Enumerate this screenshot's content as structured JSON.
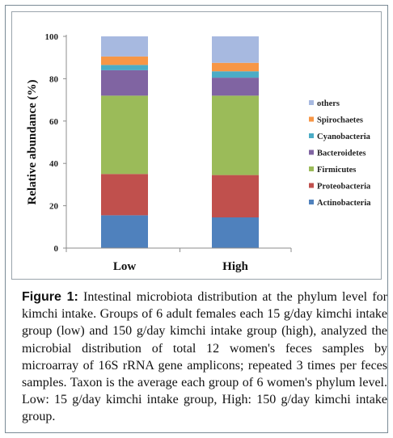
{
  "chart_data": {
    "type": "bar",
    "stacked": true,
    "categories": [
      "Low",
      "High"
    ],
    "ylabel": "Relative abundance (%)",
    "xlabel": "",
    "ylim": [
      0,
      100
    ],
    "yticks": [
      0,
      20,
      40,
      60,
      80,
      100
    ],
    "grid": false,
    "legend_position": "right",
    "series": [
      {
        "name": "Actinobacteria",
        "color": "#4f81bd",
        "values": [
          15.5,
          14.5
        ]
      },
      {
        "name": "Proteobacteria",
        "color": "#c0504d",
        "values": [
          19.5,
          20.0
        ]
      },
      {
        "name": "Firmicutes",
        "color": "#9bbb59",
        "values": [
          37.0,
          37.5
        ]
      },
      {
        "name": "Bacteroidetes",
        "color": "#8064a2",
        "values": [
          12.0,
          8.5
        ]
      },
      {
        "name": "Cyanobacteria",
        "color": "#4bacc6",
        "values": [
          2.5,
          3.0
        ]
      },
      {
        "name": "Spirochaetes",
        "color": "#f79646",
        "values": [
          4.0,
          4.0
        ]
      },
      {
        "name": "others",
        "color": "#a7b9e0",
        "values": [
          9.5,
          12.5
        ]
      }
    ]
  },
  "caption": {
    "label": "Figure 1:",
    "text": " Intestinal microbiota distribution at the phylum level for kimchi intake. Groups of 6 adult females each 15 g/day kimchi intake group (low) and 150 g/day kimchi intake group (high), analyzed the microbial distribution of total 12 women's feces samples by microarray of 16S rRNA gene amplicons; repeated 3 times per feces samples. Taxon is the average each group of 6 women's phylum level. Low: 15 g/day kimchi intake group, High: 150 g/day kimchi intake group."
  }
}
